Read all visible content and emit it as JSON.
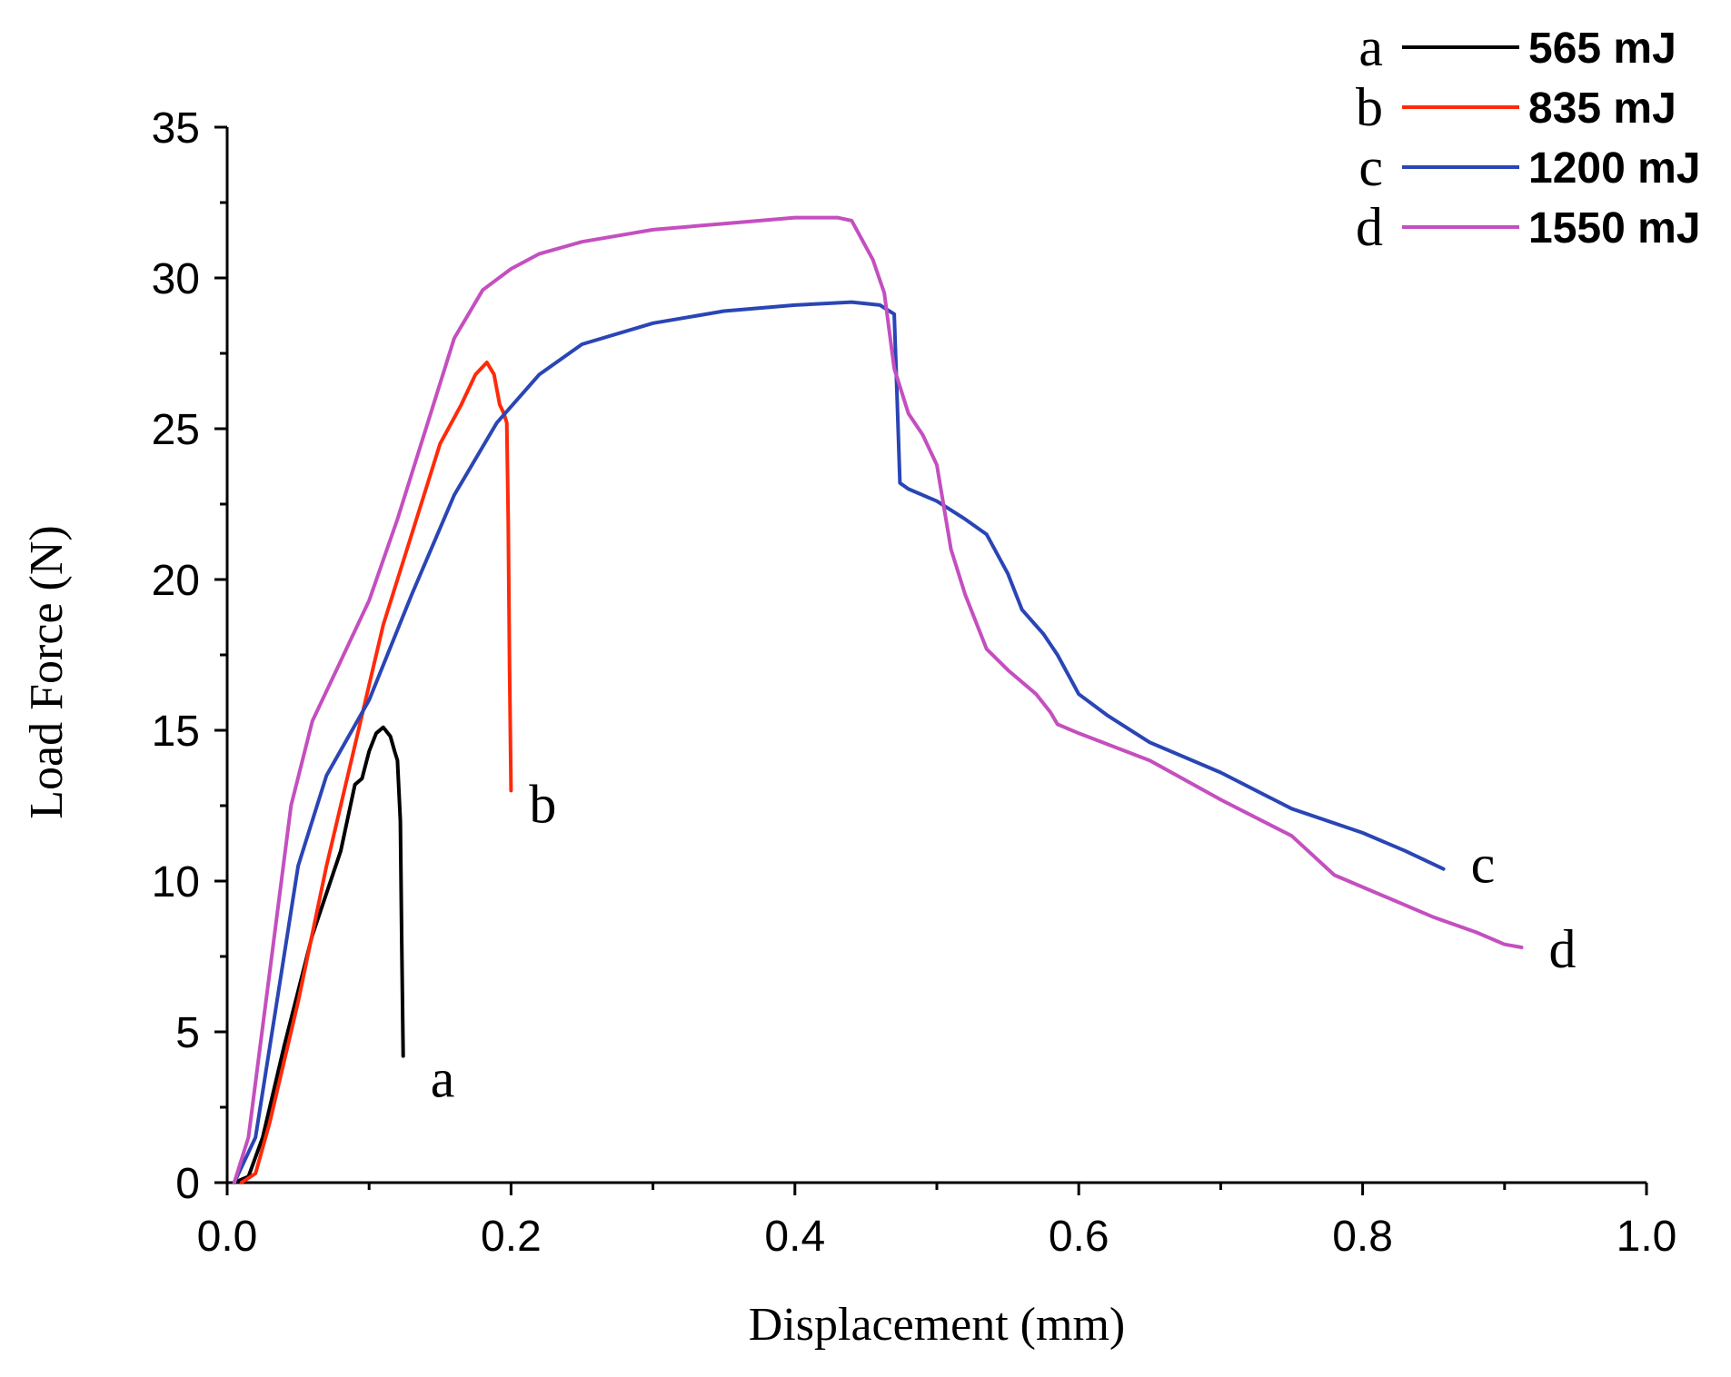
{
  "chart_data": {
    "type": "line",
    "title": "",
    "xlabel": "Displacement (mm)",
    "ylabel": "Load Force (N)",
    "xlim": [
      0.0,
      1.0
    ],
    "ylim": [
      0,
      35
    ],
    "x_ticks": [
      0.0,
      0.2,
      0.4,
      0.6,
      0.8,
      1.0
    ],
    "x_tick_labels": [
      "0.0",
      "0.2",
      "0.4",
      "0.6",
      "0.8",
      "1.0"
    ],
    "y_ticks": [
      0,
      5,
      10,
      15,
      20,
      25,
      30,
      35
    ],
    "y_tick_labels": [
      "0",
      "5",
      "10",
      "15",
      "20",
      "25",
      "30",
      "35"
    ],
    "grid": false,
    "legend_position": "top-right",
    "series": [
      {
        "id": "a",
        "name": "565 mJ",
        "color": "#000000",
        "end_label": "a",
        "points": [
          [
            0.005,
            0
          ],
          [
            0.015,
            0.2
          ],
          [
            0.025,
            1.5
          ],
          [
            0.04,
            4.5
          ],
          [
            0.06,
            8.2
          ],
          [
            0.08,
            11
          ],
          [
            0.09,
            13.2
          ],
          [
            0.095,
            13.4
          ],
          [
            0.1,
            14.3
          ],
          [
            0.105,
            14.9
          ],
          [
            0.11,
            15.1
          ],
          [
            0.115,
            14.8
          ],
          [
            0.118,
            14.3
          ],
          [
            0.12,
            14
          ],
          [
            0.122,
            12
          ],
          [
            0.123,
            8
          ],
          [
            0.124,
            4.2
          ]
        ]
      },
      {
        "id": "b",
        "name": "835 mJ",
        "color": "#ff2a0a",
        "end_label": "b",
        "points": [
          [
            0.01,
            0
          ],
          [
            0.02,
            0.3
          ],
          [
            0.03,
            2
          ],
          [
            0.05,
            6
          ],
          [
            0.07,
            10.5
          ],
          [
            0.09,
            14.5
          ],
          [
            0.11,
            18.5
          ],
          [
            0.13,
            21.5
          ],
          [
            0.15,
            24.5
          ],
          [
            0.165,
            25.8
          ],
          [
            0.175,
            26.8
          ],
          [
            0.183,
            27.2
          ],
          [
            0.188,
            26.8
          ],
          [
            0.192,
            25.8
          ],
          [
            0.195,
            25.5
          ],
          [
            0.197,
            25.2
          ],
          [
            0.198,
            22
          ],
          [
            0.199,
            17
          ],
          [
            0.2,
            13
          ]
        ]
      },
      {
        "id": "c",
        "name": "1200 mJ",
        "color": "#2a45b5",
        "end_label": "c",
        "points": [
          [
            0.005,
            0
          ],
          [
            0.02,
            1.5
          ],
          [
            0.035,
            6
          ],
          [
            0.05,
            10.5
          ],
          [
            0.07,
            13.5
          ],
          [
            0.1,
            16
          ],
          [
            0.13,
            19.5
          ],
          [
            0.16,
            22.8
          ],
          [
            0.19,
            25.2
          ],
          [
            0.22,
            26.8
          ],
          [
            0.25,
            27.8
          ],
          [
            0.3,
            28.5
          ],
          [
            0.35,
            28.9
          ],
          [
            0.4,
            29.1
          ],
          [
            0.44,
            29.2
          ],
          [
            0.46,
            29.1
          ],
          [
            0.47,
            28.8
          ],
          [
            0.472,
            26
          ],
          [
            0.474,
            23.2
          ],
          [
            0.48,
            23
          ],
          [
            0.5,
            22.6
          ],
          [
            0.52,
            22
          ],
          [
            0.535,
            21.5
          ],
          [
            0.55,
            20.2
          ],
          [
            0.56,
            19
          ],
          [
            0.575,
            18.2
          ],
          [
            0.585,
            17.5
          ],
          [
            0.6,
            16.2
          ],
          [
            0.62,
            15.5
          ],
          [
            0.65,
            14.6
          ],
          [
            0.7,
            13.6
          ],
          [
            0.75,
            12.4
          ],
          [
            0.8,
            11.6
          ],
          [
            0.83,
            11
          ],
          [
            0.857,
            10.4
          ]
        ]
      },
      {
        "id": "d",
        "name": "1550 mJ",
        "color": "#c44fbf",
        "end_label": "d",
        "points": [
          [
            0.005,
            0
          ],
          [
            0.015,
            1.5
          ],
          [
            0.03,
            7
          ],
          [
            0.045,
            12.5
          ],
          [
            0.06,
            15.3
          ],
          [
            0.08,
            17.3
          ],
          [
            0.1,
            19.3
          ],
          [
            0.12,
            22
          ],
          [
            0.14,
            25
          ],
          [
            0.16,
            28
          ],
          [
            0.18,
            29.6
          ],
          [
            0.2,
            30.3
          ],
          [
            0.22,
            30.8
          ],
          [
            0.25,
            31.2
          ],
          [
            0.3,
            31.6
          ],
          [
            0.35,
            31.8
          ],
          [
            0.4,
            32
          ],
          [
            0.43,
            32
          ],
          [
            0.44,
            31.9
          ],
          [
            0.455,
            30.6
          ],
          [
            0.463,
            29.5
          ],
          [
            0.47,
            27
          ],
          [
            0.48,
            25.5
          ],
          [
            0.49,
            24.8
          ],
          [
            0.5,
            23.8
          ],
          [
            0.51,
            21
          ],
          [
            0.52,
            19.5
          ],
          [
            0.535,
            17.7
          ],
          [
            0.55,
            17
          ],
          [
            0.57,
            16.2
          ],
          [
            0.58,
            15.6
          ],
          [
            0.585,
            15.2
          ],
          [
            0.6,
            14.9
          ],
          [
            0.65,
            14
          ],
          [
            0.7,
            12.7
          ],
          [
            0.75,
            11.5
          ],
          [
            0.78,
            10.2
          ],
          [
            0.8,
            9.8
          ],
          [
            0.85,
            8.8
          ],
          [
            0.88,
            8.3
          ],
          [
            0.9,
            7.9
          ],
          [
            0.912,
            7.8
          ]
        ]
      }
    ]
  }
}
